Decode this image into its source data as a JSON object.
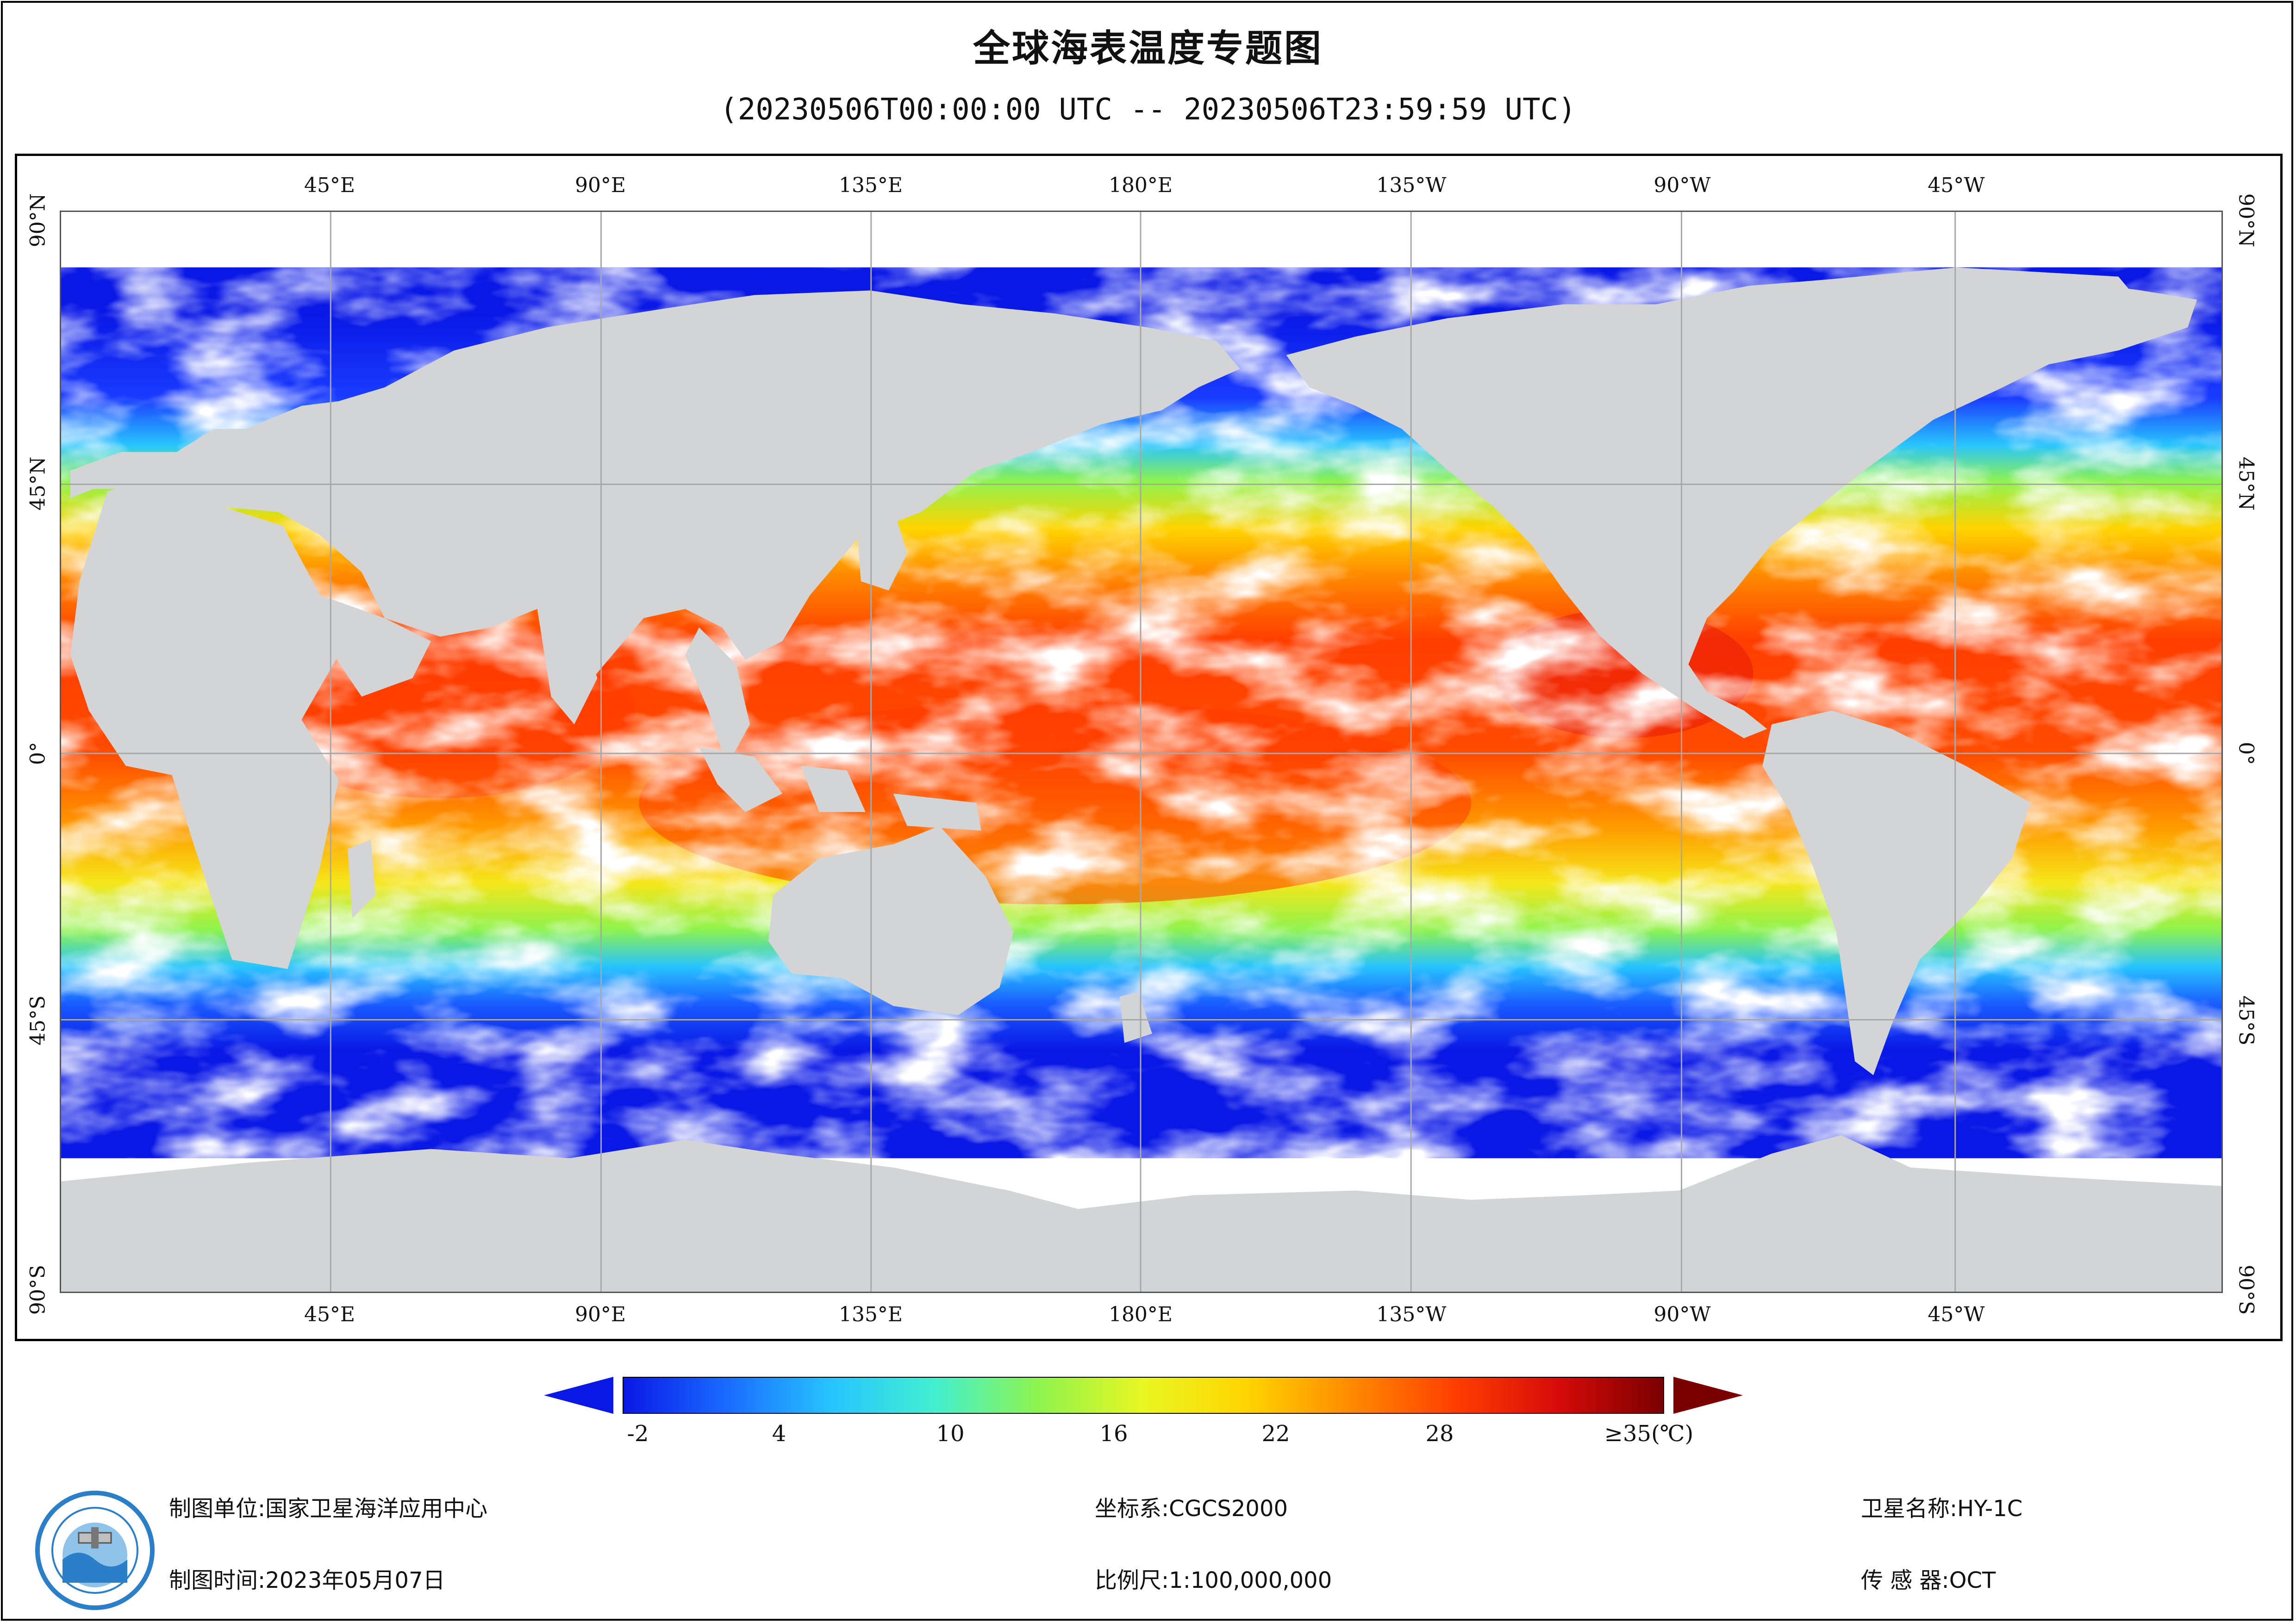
{
  "title": "全球海表温度专题图",
  "subtitle": "(20230506T00:00:00 UTC -- 20230506T23:59:59 UTC)",
  "map": {
    "lon_labels": [
      "45°E",
      "90°E",
      "135°E",
      "180°E",
      "135°W",
      "90°W",
      "45°W"
    ],
    "lat_labels": [
      "90°N",
      "45°N",
      "0°",
      "45°S",
      "90°S"
    ],
    "land_color": "#d3d4d6",
    "cloud_color": "#ffffff",
    "grid_color": "#a8a8a8"
  },
  "colorbar": {
    "ticks": [
      "-2",
      "4",
      "10",
      "16",
      "22",
      "28",
      "≥35(℃)"
    ],
    "colors": [
      "#0a18e6",
      "#1a6cff",
      "#27c4ff",
      "#43f0d0",
      "#8ff34d",
      "#e9f722",
      "#ffd400",
      "#ff8a00",
      "#ff3e00",
      "#d60a0a",
      "#7a0000"
    ]
  },
  "footer": {
    "unit_label": "制图单位:国家卫星海洋应用中心",
    "time_label": "制图时间:2023年05月07日",
    "crs_label": "坐标系:CGCS2000",
    "scale_label": "比例尺:1:100,000,000",
    "satellite_label": "卫星名称:HY-1C",
    "sensor_label": "传 感 器:OCT"
  }
}
